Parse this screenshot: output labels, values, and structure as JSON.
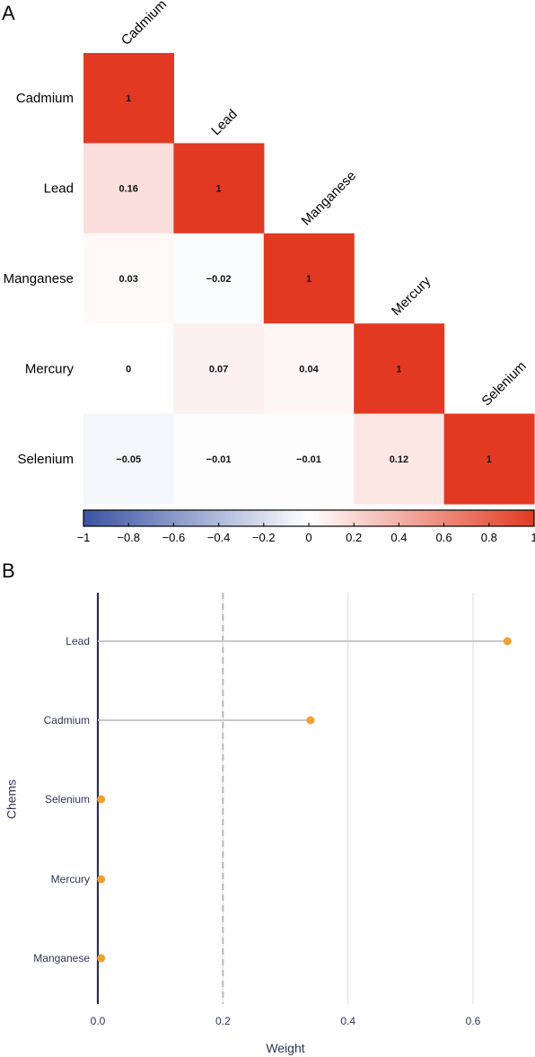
{
  "panels": {
    "a_label": "A",
    "b_label": "B"
  },
  "chart_data": [
    {
      "type": "heatmap",
      "variables": [
        "Cadmium",
        "Lead",
        "Manganese",
        "Mercury",
        "Selenium"
      ],
      "matrix": [
        [
          "1",
          null,
          null,
          null,
          null
        ],
        [
          "0.16",
          "1",
          null,
          null,
          null
        ],
        [
          "0.03",
          "−0.02",
          "1",
          null,
          null
        ],
        [
          "0",
          "0.07",
          "0.04",
          "1",
          null
        ],
        [
          "−0.05",
          "−0.01",
          "−0.01",
          "0.12",
          "1"
        ]
      ],
      "colorbar": {
        "range": [
          -1,
          1
        ],
        "ticks": [
          "−1",
          "−0.8",
          "−0.6",
          "−0.4",
          "−0.2",
          "0",
          "0.2",
          "0.4",
          "0.6",
          "0.8",
          "1"
        ],
        "low_color": "#3953a4",
        "mid_color": "#ffffff",
        "high_color": "#e23a22"
      }
    },
    {
      "type": "scatter",
      "subtype": "lollipop",
      "categories": [
        "Lead",
        "Cadmium",
        "Selenium",
        "Mercury",
        "Manganese"
      ],
      "values": [
        0.655,
        0.34,
        0.001,
        0.001,
        0.001
      ],
      "xlabel": "Weight",
      "ylabel": "Chems",
      "xlim": [
        0,
        0.7
      ],
      "xticks": [
        "0.0",
        "0.2",
        "0.4",
        "0.6"
      ],
      "threshold": 0.2,
      "point_color": "#f0a030",
      "stem_color": "#c8c8c8",
      "grid": true
    }
  ]
}
